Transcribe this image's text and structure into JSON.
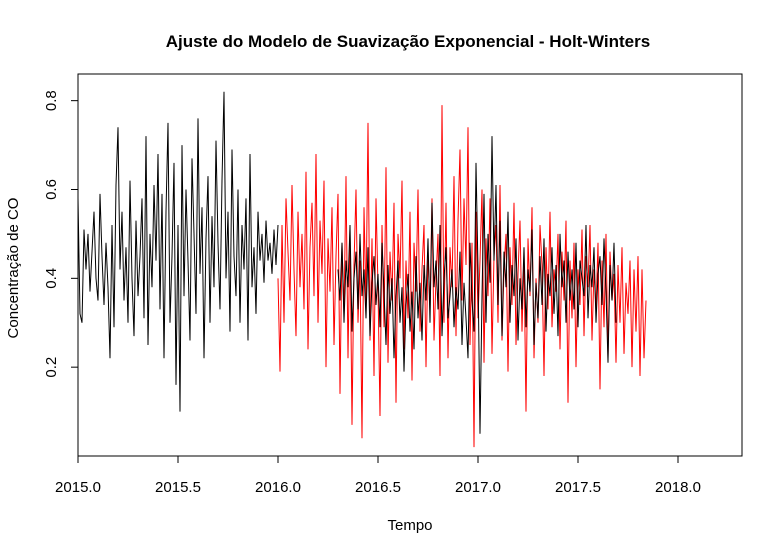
{
  "chart_data": {
    "type": "line",
    "title": "Ajuste do Modelo de Suavização Exponencial - Holt-Winters",
    "xlabel": "Tempo",
    "ylabel": "Concentração de CO",
    "xlim": [
      2015.0,
      2018.32
    ],
    "ylim": [
      0.0,
      0.86
    ],
    "xticks": [
      2015.0,
      2015.5,
      2016.0,
      2016.5,
      2017.0,
      2017.5,
      2018.0
    ],
    "xtick_labels": [
      "2015.0",
      "2015.5",
      "2016.0",
      "2016.5",
      "2017.0",
      "2017.5",
      "2018.0"
    ],
    "yticks": [
      0.2,
      0.4,
      0.6,
      0.8
    ],
    "ytick_labels": [
      "0.2",
      "0.4",
      "0.6",
      "0.8"
    ],
    "grid": false,
    "series": [
      {
        "color": "#000000",
        "x_start": 2015.0,
        "x_step": 0.01,
        "values": [
          0.58,
          0.32,
          0.3,
          0.51,
          0.42,
          0.5,
          0.37,
          0.46,
          0.55,
          0.4,
          0.35,
          0.59,
          0.45,
          0.34,
          0.48,
          0.38,
          0.22,
          0.52,
          0.29,
          0.61,
          0.74,
          0.42,
          0.55,
          0.35,
          0.47,
          0.3,
          0.62,
          0.4,
          0.27,
          0.53,
          0.36,
          0.45,
          0.58,
          0.31,
          0.72,
          0.25,
          0.5,
          0.38,
          0.61,
          0.44,
          0.68,
          0.33,
          0.59,
          0.22,
          0.55,
          0.75,
          0.3,
          0.45,
          0.66,
          0.16,
          0.52,
          0.1,
          0.7,
          0.36,
          0.6,
          0.44,
          0.26,
          0.67,
          0.5,
          0.32,
          0.76,
          0.41,
          0.56,
          0.22,
          0.49,
          0.63,
          0.3,
          0.54,
          0.38,
          0.71,
          0.48,
          0.33,
          0.62,
          0.82,
          0.4,
          0.55,
          0.28,
          0.69,
          0.45,
          0.36,
          0.6,
          0.3,
          0.52,
          0.42,
          0.58,
          0.26,
          0.68,
          0.38,
          0.47,
          0.32,
          0.55,
          0.44,
          0.5,
          0.39,
          0.53,
          0.44,
          0.48,
          0.41,
          0.51,
          0.43,
          0.52
        ]
      },
      {
        "color": "#ff0000",
        "x_start": 2016.0,
        "x_step": 0.01,
        "values": [
          0.4,
          0.19,
          0.52,
          0.3,
          0.58,
          0.46,
          0.35,
          0.61,
          0.42,
          0.27,
          0.55,
          0.38,
          0.5,
          0.33,
          0.64,
          0.24,
          0.47,
          0.57,
          0.36,
          0.68,
          0.3,
          0.53,
          0.41,
          0.62,
          0.2,
          0.49,
          0.37,
          0.56,
          0.25,
          0.45,
          0.59,
          0.14,
          0.48,
          0.32,
          0.63,
          0.22,
          0.51,
          0.07,
          0.43,
          0.6,
          0.3,
          0.44,
          0.04,
          0.56,
          0.34,
          0.75,
          0.26,
          0.49,
          0.18,
          0.58,
          0.38,
          0.09,
          0.52,
          0.29,
          0.65,
          0.21,
          0.46,
          0.35,
          0.57,
          0.12,
          0.5,
          0.4,
          0.62,
          0.24,
          0.44,
          0.31,
          0.55,
          0.17,
          0.48,
          0.37,
          0.6,
          0.28,
          0.42,
          0.52,
          0.2,
          0.46,
          0.33,
          0.58,
          0.26,
          0.4,
          0.5,
          0.18,
          0.79,
          0.3,
          0.57,
          0.22,
          0.47,
          0.38,
          0.63,
          0.27,
          0.53,
          0.69,
          0.35,
          0.58,
          0.43,
          0.74,
          0.25,
          0.48,
          0.02,
          0.55,
          0.31,
          0.44,
          0.6,
          0.21,
          0.49,
          0.36,
          0.58,
          0.23,
          0.45,
          0.52,
          0.3,
          0.61,
          0.26,
          0.42,
          0.5,
          0.19,
          0.47,
          0.34,
          0.57,
          0.25,
          0.41,
          0.53,
          0.28,
          0.45,
          0.1,
          0.49,
          0.36,
          0.56,
          0.22,
          0.4,
          0.3,
          0.52,
          0.43,
          0.18,
          0.47,
          0.33,
          0.55,
          0.29,
          0.42,
          0.37,
          0.5,
          0.24,
          0.46,
          0.35,
          0.53,
          0.12,
          0.44,
          0.31,
          0.48,
          0.2,
          0.42,
          0.34,
          0.51,
          0.27,
          0.45,
          0.38,
          0.52,
          0.26,
          0.42,
          0.33,
          0.48,
          0.15,
          0.44,
          0.29,
          0.5,
          0.22,
          0.46,
          0.35,
          0.41,
          0.21,
          0.43,
          0.3,
          0.47,
          0.23,
          0.39,
          0.32,
          0.44,
          0.2,
          0.42,
          0.28,
          0.45,
          0.18,
          0.42,
          0.22,
          0.35
        ]
      },
      {
        "color": "#000000",
        "x_start": 2016.3,
        "x_step": 0.01,
        "values": [
          0.42,
          0.35,
          0.48,
          0.3,
          0.44,
          0.38,
          0.52,
          0.28,
          0.4,
          0.46,
          0.33,
          0.5,
          0.36,
          0.42,
          0.31,
          0.47,
          0.27,
          0.39,
          0.45,
          0.34,
          0.41,
          0.29,
          0.48,
          0.37,
          0.25,
          0.43,
          0.32,
          0.4,
          0.22,
          0.36,
          0.44,
          0.3,
          0.38,
          0.19,
          0.34,
          0.41,
          0.28,
          0.37,
          0.24,
          0.45,
          0.31,
          0.39,
          0.26,
          0.43,
          0.35,
          0.49,
          0.3,
          0.57,
          0.38,
          0.44,
          0.33,
          0.52,
          0.27,
          0.4,
          0.47,
          0.31,
          0.36,
          0.42,
          0.29,
          0.38,
          0.33,
          0.46,
          0.25,
          0.39,
          0.31,
          0.22,
          0.48,
          0.35,
          0.28,
          0.66,
          0.42,
          0.05,
          0.36,
          0.59,
          0.3,
          0.5,
          0.39,
          0.72,
          0.44,
          0.61,
          0.34,
          0.53,
          0.27,
          0.46,
          0.38,
          0.55,
          0.3,
          0.43,
          0.36,
          0.49,
          0.26,
          0.4,
          0.33,
          0.47,
          0.29,
          0.42,
          0.37,
          0.51,
          0.25,
          0.39,
          0.31,
          0.45,
          0.34,
          0.49,
          0.28,
          0.41,
          0.36,
          0.47,
          0.32,
          0.43,
          0.27,
          0.5,
          0.38,
          0.44,
          0.3,
          0.46,
          0.35,
          0.42,
          0.33,
          0.48,
          0.29,
          0.44,
          0.4,
          0.36,
          0.52,
          0.31,
          0.43,
          0.38,
          0.47,
          0.3,
          0.41,
          0.45,
          0.34,
          0.49,
          0.37,
          0.21,
          0.43,
          0.35,
          0.48,
          0.3
        ]
      }
    ]
  }
}
